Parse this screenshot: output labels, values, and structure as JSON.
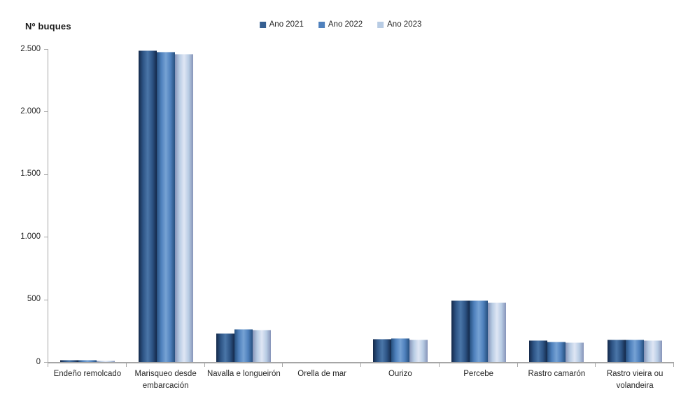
{
  "title": "Nº buques",
  "legend": [
    {
      "label": "Ano 2021",
      "color": "#365F91"
    },
    {
      "label": "Ano 2022",
      "color": "#4F81BD"
    },
    {
      "label": "Ano 2023",
      "color": "#B8CCE4"
    }
  ],
  "chart_data": {
    "type": "bar",
    "title": "Nº buques",
    "xlabel": "",
    "ylabel": "Nº buques",
    "ylim": [
      0,
      2500
    ],
    "grid": false,
    "legend_position": "top-center",
    "categories": [
      "Endeño remolcado",
      "Marisqueo desde embarcación",
      "Navalla e longueirón",
      "Orella de mar",
      "Ourizo",
      "Percebe",
      "Rastro camarón",
      "Rastro vieira ou volandeira"
    ],
    "series": [
      {
        "name": "Ano 2021",
        "values": [
          18,
          2490,
          230,
          8,
          183,
          490,
          172,
          181
        ]
      },
      {
        "name": "Ano 2022",
        "values": [
          17,
          2480,
          265,
          8,
          188,
          492,
          163,
          180
        ]
      },
      {
        "name": "Ano 2023",
        "values": [
          14,
          2460,
          260,
          6,
          178,
          473,
          158,
          174
        ]
      }
    ],
    "y_ticks": [
      {
        "value": 0,
        "label": "0"
      },
      {
        "value": 500,
        "label": "500"
      },
      {
        "value": 1000,
        "label": "1.000"
      },
      {
        "value": 1500,
        "label": "1.500"
      },
      {
        "value": 2000,
        "label": "2.000"
      },
      {
        "value": 2500,
        "label": "2.500"
      }
    ]
  },
  "styles": {
    "background": "#ffffff",
    "axis_color": "#a6a6a6",
    "text_color": "#262626",
    "series_gradients": [
      {
        "edge": "#14294a",
        "solid": "#2e5586",
        "light": "#4a76a8"
      },
      {
        "edge": "#27507f",
        "solid": "#4f81bd",
        "light": "#76a2d4"
      },
      {
        "edge": "#8694b8",
        "solid": "#b8cce4",
        "light": "#dfe6f4"
      }
    ]
  }
}
